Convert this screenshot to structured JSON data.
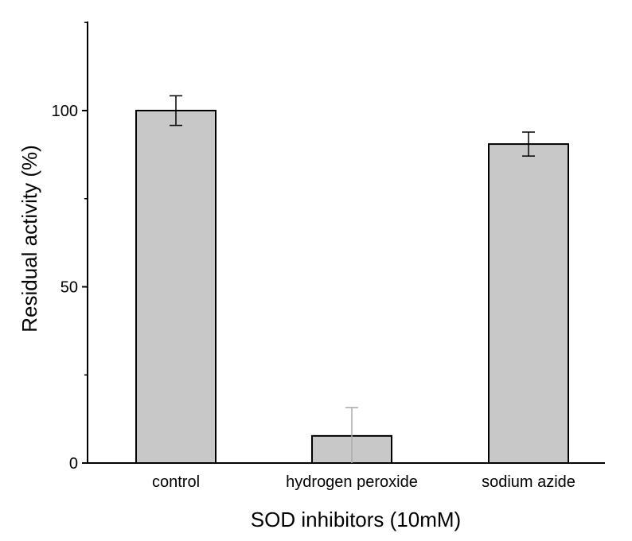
{
  "chart_data": {
    "type": "bar",
    "title": "",
    "xlabel": "SOD inhibitors (10mM)",
    "ylabel": "Residual activity (%)",
    "categories": [
      "control",
      "hydrogen peroxide",
      "sodium azide"
    ],
    "values": [
      100,
      7.7,
      90.5
    ],
    "errors": [
      4.2,
      8.0,
      3.4
    ],
    "ylim": [
      0,
      125
    ],
    "yticks": [
      0,
      50,
      100
    ],
    "ytick_labels": [
      "0",
      "50",
      "100"
    ],
    "grid": false,
    "legend": "none",
    "colors": {
      "bar_fill": "#c8c8c8",
      "bar_stroke": "#000000",
      "error_bar": "#000000",
      "error_bar_light": "#aaaaaa",
      "axis": "#000000"
    }
  }
}
